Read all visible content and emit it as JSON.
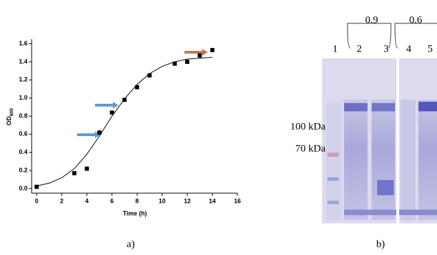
{
  "chart_data": {
    "type": "scatter",
    "xlabel": "Time (h)",
    "ylabel": "OD",
    "ylabel_subscript": "600",
    "xlim": [
      -0.4,
      16
    ],
    "ylim": [
      -0.05,
      1.65
    ],
    "xticks": [
      0,
      2,
      4,
      6,
      8,
      10,
      12,
      14,
      16
    ],
    "yticks": [
      {
        "value": 0,
        "label": "0.0"
      },
      0.2,
      0.4,
      0.6,
      0.8,
      {
        "value": 1,
        "label": "1.0"
      },
      1.2,
      1.4,
      1.6
    ],
    "series": [
      {
        "type": "scatter",
        "color": "#000000",
        "x": [
          0,
          3,
          4,
          5,
          6,
          7,
          8,
          9,
          11,
          12,
          13,
          14
        ],
        "values": [
          0.02,
          0.17,
          0.22,
          0.62,
          0.84,
          0.98,
          1.12,
          1.25,
          1.38,
          1.4,
          1.47,
          1.53
        ]
      },
      {
        "type": "line",
        "color": "#000000",
        "x": [
          0,
          1,
          2,
          3,
          4,
          5,
          6,
          7,
          8,
          9,
          10,
          11,
          12,
          13,
          14
        ],
        "values": [
          0.03,
          0.06,
          0.12,
          0.22,
          0.38,
          0.58,
          0.8,
          0.99,
          1.15,
          1.27,
          1.35,
          1.4,
          1.43,
          1.44,
          1.45
        ]
      }
    ]
  },
  "gel": {
    "lanes": [
      "1",
      "2",
      "3",
      "4",
      "5"
    ],
    "groups": [
      "0.9",
      "0.6"
    ],
    "markers": [
      "100 kDa",
      "70 kDa"
    ]
  },
  "captions": [
    "a)",
    "b)"
  ]
}
